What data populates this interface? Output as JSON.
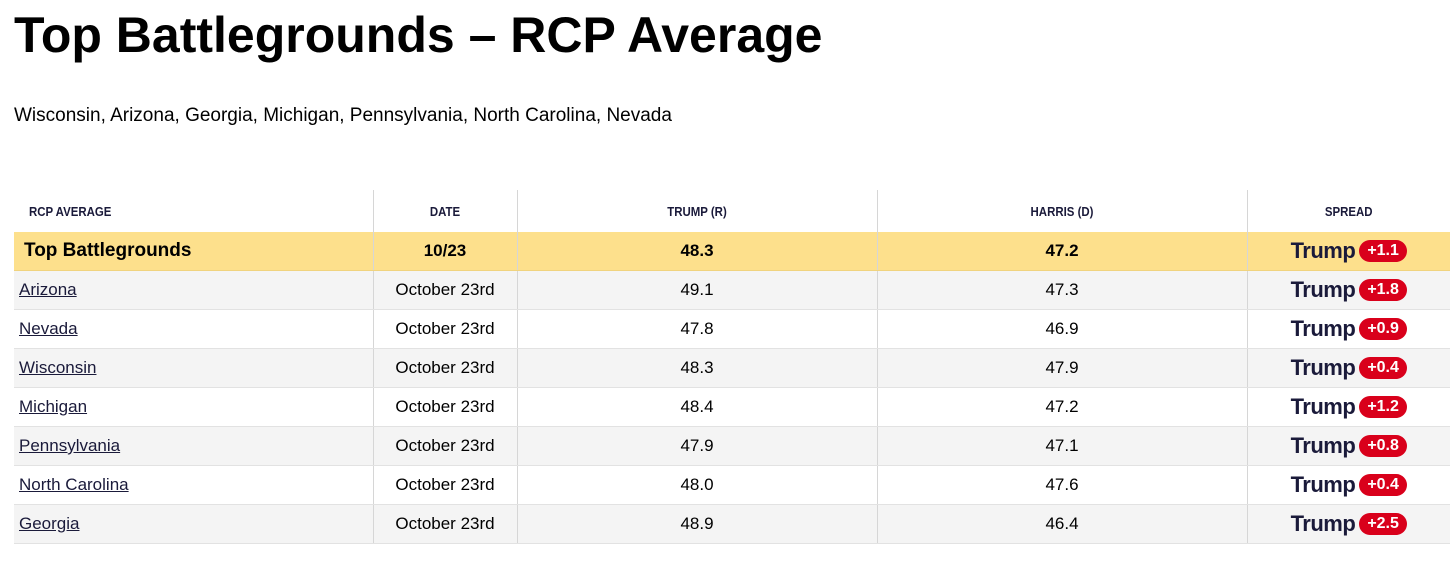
{
  "header": {
    "title": "Top Battlegrounds – RCP Average",
    "subtitle": "Wisconsin, Arizona, Georgia, Michigan, Pennsylvania, North Carolina, Nevada"
  },
  "table": {
    "columns": [
      "RCP AVERAGE",
      "DATE",
      "TRUMP (R)",
      "HARRIS (D)",
      "SPREAD"
    ],
    "average_row": {
      "name": "Top Battlegrounds",
      "date": "10/23",
      "trump": "48.3",
      "harris": "47.2",
      "spread_leader": "Trump",
      "spread_value": "+1.1"
    },
    "rows": [
      {
        "state": "Arizona",
        "date": "October 23rd",
        "trump": "49.1",
        "harris": "47.3",
        "spread_leader": "Trump",
        "spread_value": "+1.8"
      },
      {
        "state": "Nevada",
        "date": "October 23rd",
        "trump": "47.8",
        "harris": "46.9",
        "spread_leader": "Trump",
        "spread_value": "+0.9"
      },
      {
        "state": "Wisconsin",
        "date": "October 23rd",
        "trump": "48.3",
        "harris": "47.9",
        "spread_leader": "Trump",
        "spread_value": "+0.4"
      },
      {
        "state": "Michigan",
        "date": "October 23rd",
        "trump": "48.4",
        "harris": "47.2",
        "spread_leader": "Trump",
        "spread_value": "+1.2"
      },
      {
        "state": "Pennsylvania",
        "date": "October 23rd",
        "trump": "47.9",
        "harris": "47.1",
        "spread_leader": "Trump",
        "spread_value": "+0.8"
      },
      {
        "state": "North Carolina",
        "date": "October 23rd",
        "trump": "48.0",
        "harris": "47.6",
        "spread_leader": "Trump",
        "spread_value": "+0.4"
      },
      {
        "state": "Georgia",
        "date": "October 23rd",
        "trump": "48.9",
        "harris": "46.4",
        "spread_leader": "Trump",
        "spread_value": "+2.5"
      }
    ]
  },
  "colors": {
    "highlight_row": "#fde08c",
    "spread_badge": "#d9001b",
    "alt_row": "#f4f4f4"
  }
}
